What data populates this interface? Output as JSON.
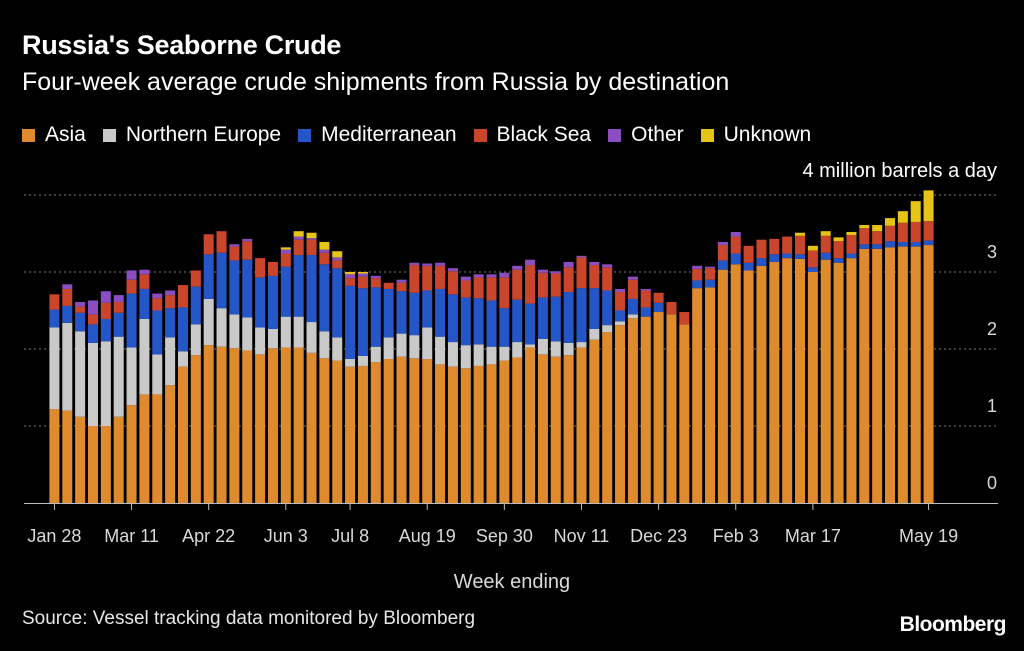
{
  "chart_data": {
    "type": "bar",
    "stacked": true,
    "title": "Russia's Seaborne Crude",
    "subtitle": "Four-week average crude shipments from Russia by destination",
    "unit_label": "4 million barrels a day",
    "xlabel": "Week ending",
    "ylim": [
      0,
      4
    ],
    "yticks": [
      0,
      1,
      2,
      3
    ],
    "grid": true,
    "legend_position": "top",
    "x_tick_labels": [
      "Jan 28",
      "Mar 11",
      "Apr 22",
      "Jun 3",
      "Jul 8",
      "Aug 19",
      "Sep 30",
      "Nov 11",
      "Dec 23",
      "Feb 3",
      "Mar 17",
      "May 19"
    ],
    "x_tick_index": [
      0,
      6,
      12,
      18,
      23,
      29,
      35,
      41,
      47,
      53,
      59,
      68
    ],
    "series": [
      {
        "name": "Asia",
        "color": "#e08a2e",
        "values": [
          1.22,
          1.2,
          1.12,
          1.0,
          1.0,
          1.12,
          1.27,
          1.41,
          1.41,
          1.53,
          1.77,
          1.92,
          2.05,
          2.03,
          2.01,
          1.98,
          1.93,
          2.01,
          2.02,
          2.02,
          1.95,
          1.88,
          1.85,
          1.77,
          1.78,
          1.83,
          1.87,
          1.9,
          1.88,
          1.87,
          1.8,
          1.77,
          1.75,
          1.78,
          1.8,
          1.85,
          1.89,
          2.02,
          1.93,
          1.9,
          1.92,
          2.02,
          2.12,
          2.22,
          2.31,
          2.4,
          2.42,
          2.48,
          2.45,
          2.32,
          2.79,
          2.8,
          3.03,
          3.1,
          3.02,
          3.08,
          3.13,
          3.18,
          3.17,
          3.0,
          3.16,
          3.12,
          3.18,
          3.3,
          3.3,
          3.32,
          3.33,
          3.33,
          3.35
        ]
      },
      {
        "name": "Northern Europe",
        "color": "#c9c9c9",
        "values": [
          1.06,
          1.14,
          1.11,
          1.08,
          1.1,
          1.04,
          0.75,
          0.98,
          0.52,
          0.62,
          0.2,
          0.4,
          0.6,
          0.5,
          0.44,
          0.43,
          0.35,
          0.25,
          0.4,
          0.4,
          0.4,
          0.35,
          0.3,
          0.1,
          0.13,
          0.2,
          0.28,
          0.3,
          0.3,
          0.41,
          0.36,
          0.32,
          0.3,
          0.28,
          0.23,
          0.18,
          0.2,
          0.04,
          0.2,
          0.2,
          0.16,
          0.07,
          0.14,
          0.09,
          0.05,
          0.05,
          0.0,
          0.0,
          0.0,
          0.0,
          0.0,
          0.0,
          0.0,
          0.0,
          0.0,
          0.0,
          0.0,
          0.0,
          0.0,
          0.0,
          0.0,
          0.0,
          0.0,
          0.0,
          0.0,
          0.0,
          0.0,
          0.0,
          0.0
        ]
      },
      {
        "name": "Mediterranean",
        "color": "#2456c7",
        "values": [
          0.23,
          0.22,
          0.24,
          0.24,
          0.29,
          0.31,
          0.7,
          0.39,
          0.57,
          0.38,
          0.57,
          0.49,
          0.58,
          0.72,
          0.7,
          0.75,
          0.65,
          0.69,
          0.65,
          0.8,
          0.87,
          0.87,
          0.9,
          0.95,
          0.88,
          0.77,
          0.63,
          0.55,
          0.55,
          0.48,
          0.62,
          0.62,
          0.62,
          0.6,
          0.6,
          0.5,
          0.55,
          0.53,
          0.54,
          0.58,
          0.66,
          0.7,
          0.53,
          0.45,
          0.14,
          0.2,
          0.12,
          0.12,
          0.0,
          0.0,
          0.1,
          0.1,
          0.12,
          0.14,
          0.1,
          0.1,
          0.1,
          0.06,
          0.06,
          0.06,
          0.09,
          0.06,
          0.06,
          0.06,
          0.06,
          0.08,
          0.06,
          0.06,
          0.06
        ]
      },
      {
        "name": "Black Sea",
        "color": "#c9462c",
        "values": [
          0.2,
          0.22,
          0.08,
          0.13,
          0.21,
          0.14,
          0.18,
          0.19,
          0.16,
          0.17,
          0.29,
          0.21,
          0.26,
          0.28,
          0.18,
          0.24,
          0.25,
          0.18,
          0.17,
          0.2,
          0.2,
          0.15,
          0.1,
          0.1,
          0.15,
          0.12,
          0.08,
          0.11,
          0.36,
          0.32,
          0.3,
          0.3,
          0.22,
          0.27,
          0.3,
          0.4,
          0.39,
          0.5,
          0.32,
          0.3,
          0.32,
          0.4,
          0.3,
          0.3,
          0.24,
          0.25,
          0.22,
          0.13,
          0.16,
          0.16,
          0.15,
          0.15,
          0.2,
          0.22,
          0.22,
          0.24,
          0.2,
          0.22,
          0.24,
          0.22,
          0.22,
          0.22,
          0.24,
          0.21,
          0.17,
          0.2,
          0.25,
          0.26,
          0.25
        ]
      },
      {
        "name": "Other",
        "color": "#8a4ec1",
        "values": [
          0.0,
          0.06,
          0.06,
          0.18,
          0.15,
          0.09,
          0.12,
          0.06,
          0.06,
          0.06,
          0.0,
          0.0,
          0.0,
          0.0,
          0.03,
          0.03,
          0.0,
          0.0,
          0.05,
          0.04,
          0.02,
          0.04,
          0.04,
          0.05,
          0.04,
          0.03,
          0.0,
          0.04,
          0.03,
          0.03,
          0.04,
          0.04,
          0.05,
          0.04,
          0.04,
          0.06,
          0.05,
          0.07,
          0.04,
          0.03,
          0.07,
          0.02,
          0.04,
          0.04,
          0.04,
          0.04,
          0.02,
          0.0,
          0.0,
          0.0,
          0.04,
          0.02,
          0.04,
          0.06,
          0.0,
          0.0,
          0.0,
          0.0,
          0.0,
          0.0,
          0.0,
          0.0,
          0.0,
          0.0,
          0.0,
          0.0,
          0.0,
          0.0,
          0.0
        ]
      },
      {
        "name": "Unknown",
        "color": "#e6c416",
        "values": [
          0.0,
          0.0,
          0.0,
          0.0,
          0.0,
          0.0,
          0.0,
          0.0,
          0.0,
          0.0,
          0.0,
          0.0,
          0.0,
          0.0,
          0.0,
          0.0,
          0.0,
          0.0,
          0.03,
          0.07,
          0.07,
          0.1,
          0.08,
          0.03,
          0.02,
          0.0,
          0.0,
          0.0,
          0.0,
          0.0,
          0.0,
          0.0,
          0.0,
          0.0,
          0.0,
          0.0,
          0.0,
          0.0,
          0.0,
          0.0,
          0.0,
          0.0,
          0.0,
          0.0,
          0.0,
          0.0,
          0.0,
          0.0,
          0.0,
          0.0,
          0.0,
          0.0,
          0.0,
          0.0,
          0.0,
          0.0,
          0.0,
          0.0,
          0.04,
          0.06,
          0.06,
          0.05,
          0.04,
          0.04,
          0.08,
          0.1,
          0.15,
          0.27,
          0.4
        ]
      }
    ]
  },
  "legend": [
    {
      "label": "Asia",
      "color": "#e08a2e"
    },
    {
      "label": "Northern Europe",
      "color": "#c9c9c9"
    },
    {
      "label": "Mediterranean",
      "color": "#2456c7"
    },
    {
      "label": "Black Sea",
      "color": "#c9462c"
    },
    {
      "label": "Other",
      "color": "#8a4ec1"
    },
    {
      "label": "Unknown",
      "color": "#e6c416"
    }
  ],
  "source": "Source: Vessel tracking data monitored by Bloomberg",
  "brand": "Bloomberg"
}
